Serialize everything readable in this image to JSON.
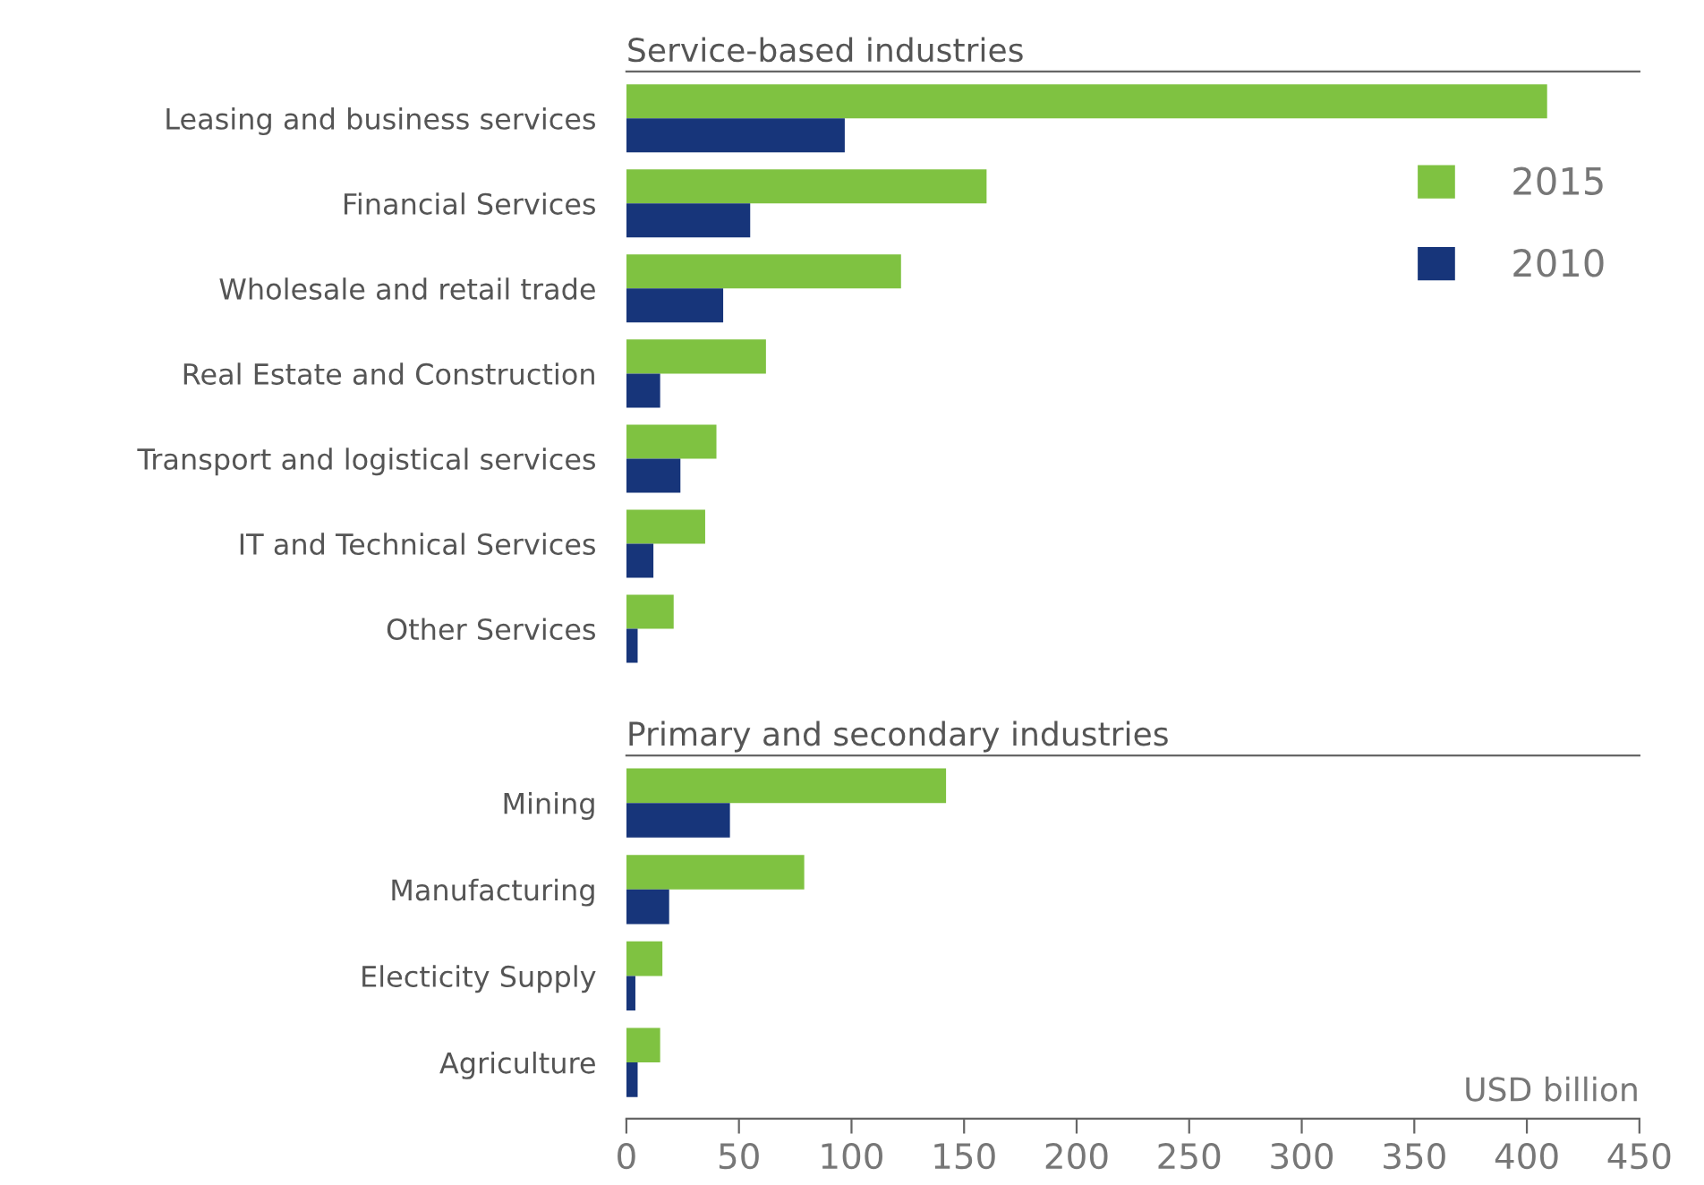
{
  "chart_data": [
    {
      "type": "bar",
      "orientation": "horizontal",
      "title": "Service-based industries",
      "categories": [
        "Leasing and business services",
        "Financial Services",
        "Wholesale and retail trade",
        "Real Estate and Construction",
        "Transport and logistical services",
        "IT and Technical Services",
        "Other Services"
      ],
      "series": [
        {
          "name": "2015",
          "color": "#7fc241",
          "values": [
            409,
            160,
            122,
            62,
            40,
            35,
            21
          ]
        },
        {
          "name": "2010",
          "color": "#17357a",
          "values": [
            97,
            55,
            43,
            15,
            24,
            12,
            5
          ]
        }
      ],
      "xlim": [
        0,
        450
      ],
      "xticks": [
        0,
        50,
        100,
        150,
        200,
        250,
        300,
        350,
        400,
        450
      ],
      "tick_labels": "y",
      "legend": "top right",
      "grid": false
    },
    {
      "type": "bar",
      "orientation": "horizontal",
      "title": "Primary and secondary industries",
      "xlabel": "USD billion",
      "categories": [
        "Mining",
        "Manufacturing",
        "Electicity Supply",
        "Agriculture"
      ],
      "series": [
        {
          "name": "2015",
          "color": "#7fc241",
          "values": [
            142,
            79,
            16,
            15
          ]
        },
        {
          "name": "2010",
          "color": "#17357a",
          "values": [
            46,
            19,
            4,
            5
          ]
        }
      ],
      "xlim": [
        0,
        450
      ],
      "xticks": [
        0,
        50,
        100,
        150,
        200,
        250,
        300,
        350,
        400,
        450
      ],
      "legend": false,
      "grid": false
    }
  ]
}
